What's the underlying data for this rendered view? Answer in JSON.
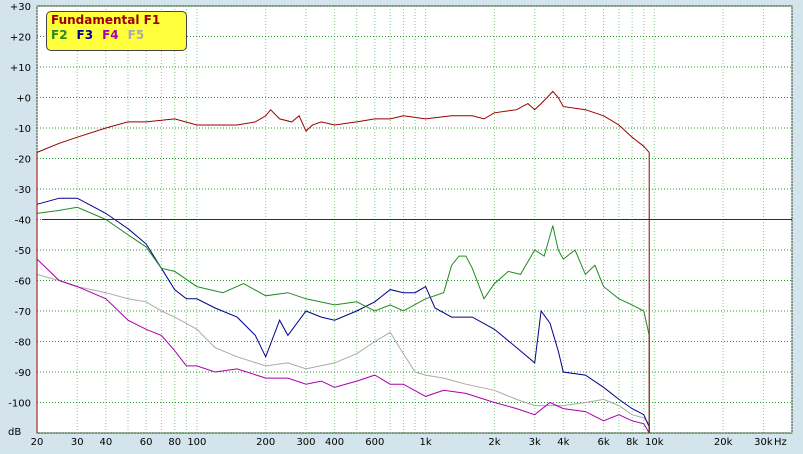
{
  "chart_data": {
    "type": "line",
    "title": "",
    "xlabel": "Hz",
    "ylabel": "dB",
    "xscale": "log",
    "xlim": [
      20,
      40000
    ],
    "ylim": [
      -110,
      30
    ],
    "grid": true,
    "legend_position": "top-left",
    "xtick_labels": [
      "20",
      "30",
      "40",
      "60",
      "80",
      "100",
      "200",
      "300",
      "400",
      "600",
      "1k",
      "2k",
      "3k",
      "4k",
      "6k",
      "8k",
      "10k",
      "20k",
      "30k"
    ],
    "xtick_values": [
      20,
      30,
      40,
      60,
      80,
      100,
      200,
      300,
      400,
      600,
      1000,
      2000,
      3000,
      4000,
      6000,
      8000,
      10000,
      20000,
      30000
    ],
    "ytick_labels": [
      "+30",
      "+20",
      "+10",
      "+0",
      "-10",
      "-20",
      "-30",
      "-40",
      "-50",
      "-60",
      "-70",
      "-80",
      "-90",
      "-100"
    ],
    "ytick_values": [
      30,
      20,
      10,
      0,
      -10,
      -20,
      -30,
      -40,
      -50,
      -60,
      -70,
      -80,
      -90,
      -100
    ],
    "reference_line": -40,
    "colors": {
      "plot_bg": "#ffffff",
      "major_grid": "#229922",
      "minor_grid": "#88cc88",
      "reference": "#990000"
    },
    "series": [
      {
        "name": "Fundamental F1",
        "color": "#990000",
        "x": [
          20,
          25,
          30,
          40,
          50,
          60,
          80,
          100,
          150,
          180,
          200,
          210,
          230,
          260,
          280,
          300,
          320,
          350,
          400,
          500,
          600,
          700,
          800,
          1000,
          1300,
          1600,
          1800,
          2000,
          2500,
          2800,
          3000,
          3200,
          3400,
          3600,
          3800,
          4000,
          5000,
          6000,
          7000,
          8000,
          9000,
          9500
        ],
        "y": [
          -18,
          -15,
          -13,
          -10,
          -8,
          -8,
          -7,
          -9,
          -9,
          -8,
          -6,
          -4,
          -7,
          -8,
          -6,
          -11,
          -9,
          -8,
          -9,
          -8,
          -7,
          -7,
          -6,
          -7,
          -6,
          -6,
          -7,
          -5,
          -4,
          -2,
          -4,
          -2,
          0,
          2,
          0,
          -3,
          -4,
          -6,
          -9,
          -13,
          -16,
          -18
        ]
      },
      {
        "name": "F2",
        "color": "#228b22",
        "x": [
          20,
          25,
          30,
          40,
          50,
          60,
          70,
          80,
          100,
          130,
          160,
          200,
          250,
          300,
          400,
          500,
          600,
          700,
          800,
          1000,
          1200,
          1300,
          1400,
          1500,
          1600,
          1800,
          2000,
          2300,
          2600,
          3000,
          3300,
          3600,
          3800,
          4000,
          4500,
          5000,
          5500,
          6000,
          7000,
          8000,
          9000,
          9500
        ],
        "y": [
          -38,
          -37,
          -36,
          -40,
          -45,
          -49,
          -56,
          -57,
          -62,
          -64,
          -61,
          -65,
          -64,
          -66,
          -68,
          -67,
          -70,
          -68,
          -70,
          -66,
          -64,
          -55,
          -52,
          -52,
          -56,
          -66,
          -61,
          -57,
          -58,
          -50,
          -52,
          -42,
          -50,
          -53,
          -50,
          -58,
          -55,
          -62,
          -66,
          -68,
          -70,
          -78
        ]
      },
      {
        "name": "F3",
        "color": "#000088",
        "x": [
          20,
          25,
          30,
          40,
          50,
          60,
          70,
          80,
          90,
          100,
          120,
          150,
          180,
          200,
          230,
          250,
          300,
          350,
          400,
          500,
          600,
          700,
          800,
          900,
          1000,
          1100,
          1300,
          1600,
          2000,
          2500,
          3000,
          3200,
          3500,
          3800,
          4000,
          5000,
          6000,
          7000,
          8000,
          9000,
          9500
        ],
        "y": [
          -35,
          -33,
          -33,
          -38,
          -43,
          -48,
          -56,
          -63,
          -66,
          -66,
          -69,
          -72,
          -78,
          -85,
          -73,
          -78,
          -70,
          -72,
          -73,
          -70,
          -67,
          -63,
          -64,
          -64,
          -62,
          -69,
          -72,
          -72,
          -76,
          -82,
          -87,
          -70,
          -74,
          -83,
          -90,
          -91,
          -95,
          -99,
          -102,
          -104,
          -108
        ]
      },
      {
        "name": "F4",
        "color": "#aa00aa",
        "x": [
          20,
          25,
          30,
          40,
          50,
          60,
          70,
          80,
          90,
          100,
          120,
          150,
          200,
          250,
          300,
          350,
          400,
          500,
          600,
          700,
          800,
          1000,
          1200,
          1500,
          2000,
          2500,
          3000,
          3500,
          4000,
          5000,
          6000,
          7000,
          8000,
          9000,
          9500
        ],
        "y": [
          -53,
          -60,
          -62,
          -66,
          -73,
          -76,
          -78,
          -83,
          -88,
          -88,
          -90,
          -89,
          -92,
          -92,
          -94,
          -93,
          -95,
          -93,
          -91,
          -94,
          -94,
          -98,
          -96,
          -97,
          -100,
          -102,
          -104,
          -100,
          -102,
          -103,
          -106,
          -104,
          -106,
          -107,
          -110
        ]
      },
      {
        "name": "F5",
        "color": "#aaaaaa",
        "x": [
          20,
          25,
          30,
          40,
          50,
          60,
          70,
          80,
          100,
          120,
          150,
          200,
          250,
          300,
          400,
          500,
          600,
          700,
          800,
          900,
          1000,
          1200,
          1500,
          2000,
          2500,
          3000,
          3500,
          4000,
          5000,
          6000,
          7000,
          8000,
          9000,
          9500
        ],
        "y": [
          -58,
          -60,
          -62,
          -64,
          -66,
          -67,
          -70,
          -72,
          -76,
          -82,
          -85,
          -88,
          -87,
          -89,
          -87,
          -84,
          -80,
          -77,
          -84,
          -90,
          -91,
          -92,
          -94,
          -96,
          -99,
          -101,
          -101,
          -101,
          -100,
          -99,
          -101,
          -104,
          -105,
          -107
        ]
      }
    ]
  }
}
